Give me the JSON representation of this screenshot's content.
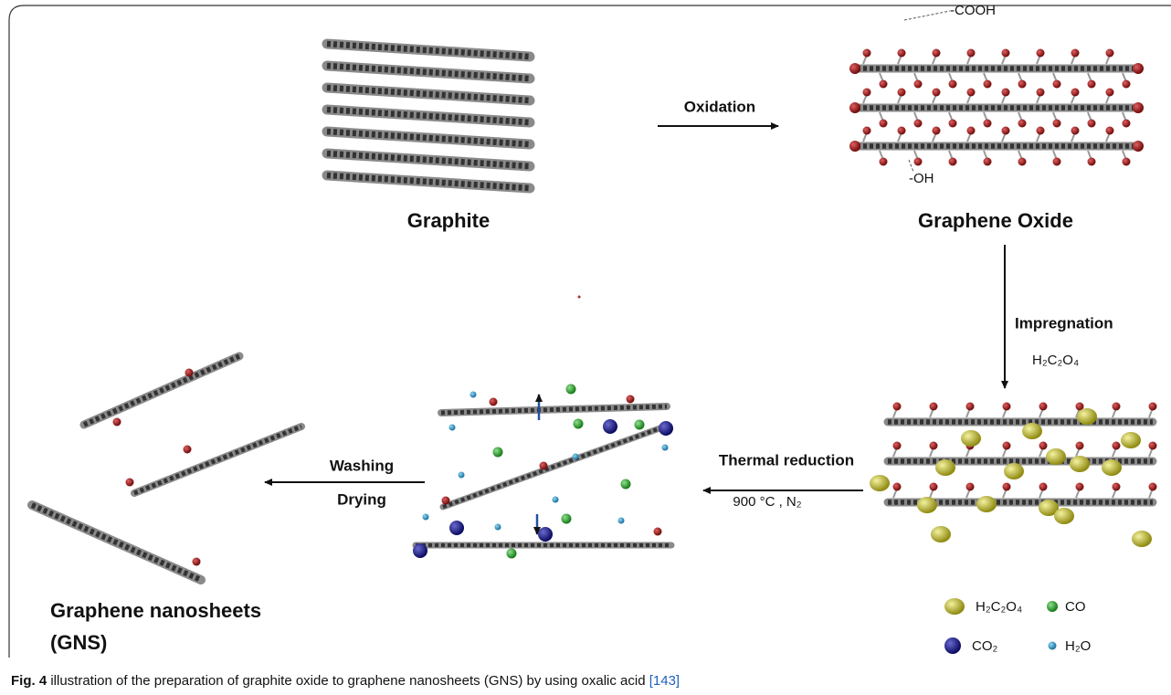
{
  "figure": {
    "labels": {
      "graphite": "Graphite",
      "graphene_oxide": "Graphene Oxide",
      "gns_line1": "Graphene nanosheets",
      "gns_line2": "(GNS)"
    },
    "annotations": {
      "cooh": "-COOH",
      "oh": "-OH"
    },
    "steps": {
      "oxidation": "Oxidation",
      "impregnation": "Impregnation",
      "impregnation_agent": "H₂C₂O₄",
      "thermal_reduction": "Thermal reduction",
      "thermal_conditions": "900 °C , N₂",
      "washing": "Washing",
      "drying": "Drying"
    },
    "legend": {
      "h2c2o4": "H₂C₂O₄",
      "co": "CO",
      "co2": "CO₂",
      "h2o": "H₂O"
    },
    "caption": {
      "label": "Fig. 4",
      "text": " illustration of the preparation of graphite oxide to graphene nanosheets (GNS) by using oxalic acid ",
      "ref": "[143]"
    }
  }
}
